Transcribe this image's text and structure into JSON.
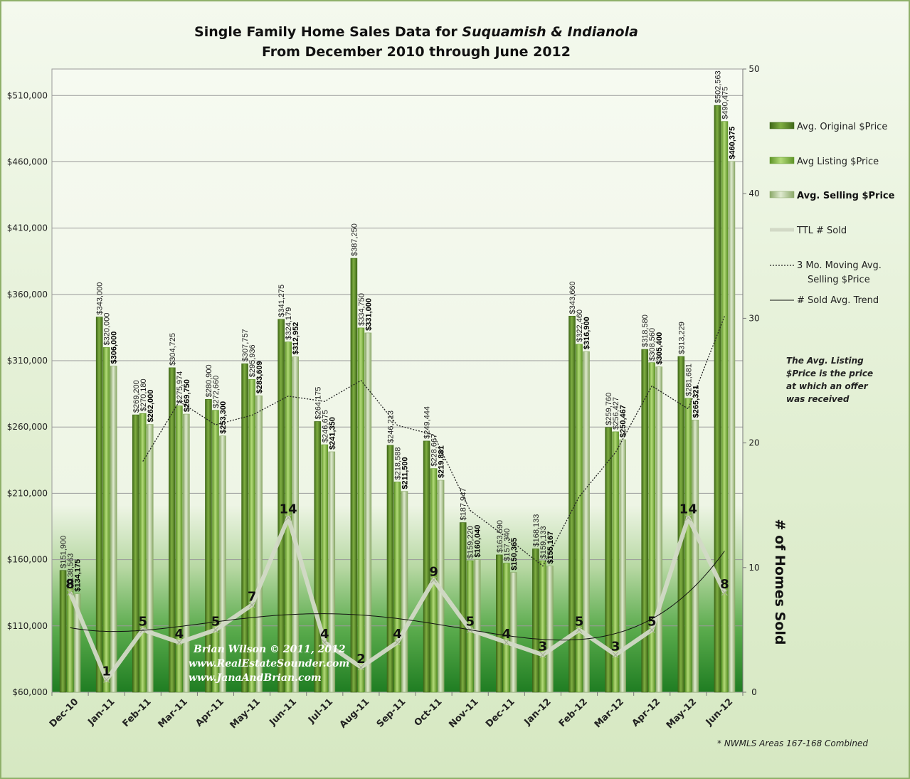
{
  "chart_data": {
    "type": "bar",
    "title_line1_prefix": "Single Family Home Sales Data for ",
    "title_line1_italic": "Suquamish & Indianola",
    "title_line2": "From December 2010 through June 2012",
    "categories": [
      "Dec-10",
      "Jan-11",
      "Feb-11",
      "Mar-11",
      "Apr-11",
      "May-11",
      "Jun-11",
      "Jul-11",
      "Aug-11",
      "Sep-11",
      "Oct-11",
      "Nov-11",
      "Dec-11",
      "Jan-12",
      "Feb-12",
      "Mar-12",
      "Apr-12",
      "May-12",
      "Jun-12"
    ],
    "series": [
      {
        "name": "Avg. Original $Price",
        "values": [
          151900,
          343000,
          269200,
          304725,
          280900,
          307757,
          341275,
          264175,
          387250,
          246213,
          249444,
          187947,
          163590,
          168133,
          343660,
          259760,
          318580,
          313229,
          502563
        ],
        "labels": [
          "$151,900",
          "$343,000",
          "$269,200",
          "$304,725",
          "$280,900",
          "$307,757",
          "$341,275",
          "$264,175",
          "$387,250",
          "$246,213",
          "$249,444",
          "$187,947",
          "$163,590",
          "$168,133",
          "$343,660",
          "$259,760",
          "$318,580",
          "$313,229",
          "$502,563"
        ]
      },
      {
        "name": "Avg Listing $Price",
        "values": [
          138563,
          320000,
          270180,
          275974,
          272660,
          295936,
          324179,
          246675,
          334750,
          218588,
          228667,
          159220,
          157340,
          159133,
          322460,
          256427,
          308560,
          281681,
          490475
        ],
        "labels": [
          "$138,563",
          "$320,000",
          "$270,180",
          "$275,974",
          "$272,660",
          "$295,936",
          "$324,179",
          "$246,675",
          "$334,750",
          "$218,588",
          "$228,667",
          "$159,220",
          "$157,340",
          "$159,133",
          "$322,460",
          "$256,427",
          "$308,560",
          "$281,681",
          "$490,475"
        ]
      },
      {
        "name": "Avg. Selling $Price",
        "values": [
          134175,
          306000,
          262000,
          269750,
          253300,
          283609,
          312952,
          241350,
          331000,
          211500,
          219881,
          160040,
          150365,
          155167,
          316900,
          250467,
          305400,
          265321,
          460375
        ],
        "labels": [
          "$134,175",
          "$306,000",
          "$262,000",
          "$269,750",
          "$253,300",
          "$283,609",
          "$312,952",
          "$241,350",
          "$331,000",
          "$211,500",
          "$219,881",
          "$160,040",
          "$150,365",
          "$155,167",
          "$316,900",
          "$250,467",
          "$305,400",
          "$265,321",
          "$460,375"
        ]
      }
    ],
    "sold_series": {
      "name": "TTL # Sold",
      "values": [
        8,
        1,
        5,
        4,
        5,
        7,
        14,
        4,
        2,
        4,
        9,
        5,
        4,
        3,
        5,
        3,
        5,
        14,
        8
      ]
    },
    "moving_avg": {
      "name": "3 Mo. Moving Avg. Selling $Price",
      "values": [
        null,
        null,
        234058,
        279250,
        261683,
        268886,
        283287,
        279304,
        295101,
        261283,
        254127,
        197140,
        176762,
        155191,
        207477,
        240845,
        290922,
        273729,
        343699
      ]
    },
    "trend": {
      "name": "# Sold Avg. Trend"
    },
    "legend_labels": {
      "orig": "Avg. Original $Price",
      "list": "Avg Listing $Price",
      "sell": "Avg. Selling $Price",
      "sold": "TTL # Sold",
      "mavg1": "3 Mo. Moving Avg.",
      "mavg2": "Selling $Price",
      "trend": "# Sold Avg. Trend"
    },
    "ylabel": "",
    "y2label": "# of Homes Sold",
    "ylim": [
      60000,
      530000
    ],
    "yticks": [
      60000,
      110000,
      160000,
      210000,
      260000,
      310000,
      360000,
      410000,
      460000,
      510000
    ],
    "ytick_labels": [
      "$60,000",
      "$110,000",
      "$160,000",
      "$210,000",
      "$260,000",
      "$310,000",
      "$360,000",
      "$410,000",
      "$460,000",
      "$510,000"
    ],
    "y2lim": [
      0,
      50
    ],
    "y2ticks": [
      0,
      10,
      20,
      30,
      40,
      50
    ],
    "grid": true,
    "legend": "right",
    "note_lines": [
      "The Avg. Listing",
      "$Price is the price",
      "at which an offer",
      "was received"
    ],
    "footnote": "* NWMLS Areas 167-168 Combined",
    "watermark_lines": [
      "Brian Wilson  © 2011, 2012",
      "www.RealEstateSounder.com",
      "www.JanaAndBrian.com"
    ],
    "colors": {
      "orig": "#5e8a2c",
      "list": "#8dbb4f",
      "sell": "#c6d8a2",
      "sold": "#d2d9c6",
      "grid": "#9a9a9a"
    }
  }
}
